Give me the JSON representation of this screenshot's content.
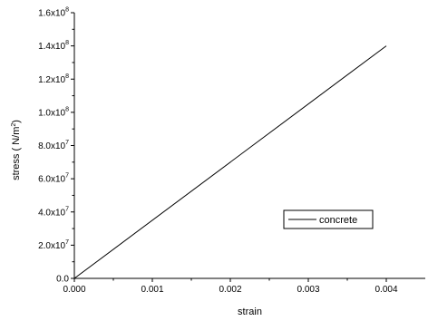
{
  "chart_data": {
    "type": "line",
    "title": "",
    "xlabel": "strain",
    "ylabel": "stress ( N/m",
    "ylabel_superscript": "2",
    "ylabel_suffix": ")",
    "xlim": [
      0,
      0.0045
    ],
    "ylim": [
      0,
      160000000
    ],
    "x_ticks": [
      {
        "value": 0.0,
        "label": "0.000"
      },
      {
        "value": 0.001,
        "label": "0.001"
      },
      {
        "value": 0.002,
        "label": "0.002"
      },
      {
        "value": 0.003,
        "label": "0.003"
      },
      {
        "value": 0.004,
        "label": "0.004"
      }
    ],
    "y_ticks": [
      {
        "value": 0,
        "mantissa": "0.0",
        "exp": ""
      },
      {
        "value": 20000000,
        "mantissa": "2.0x10",
        "exp": "7"
      },
      {
        "value": 40000000,
        "mantissa": "4.0x10",
        "exp": "7"
      },
      {
        "value": 60000000,
        "mantissa": "6.0x10",
        "exp": "7"
      },
      {
        "value": 80000000,
        "mantissa": "8.0x10",
        "exp": "7"
      },
      {
        "value": 100000000,
        "mantissa": "1.0x10",
        "exp": "8"
      },
      {
        "value": 120000000,
        "mantissa": "1.2x10",
        "exp": "8"
      },
      {
        "value": 140000000,
        "mantissa": "1.4x10",
        "exp": "8"
      },
      {
        "value": 160000000,
        "mantissa": "1.6x10",
        "exp": "8"
      }
    ],
    "series": [
      {
        "name": "concrete",
        "color": "#000000",
        "x": [
          0,
          0.004
        ],
        "y": [
          0,
          140000000
        ]
      }
    ],
    "legend": {
      "position": "lower-right",
      "entries": [
        "concrete"
      ]
    },
    "grid": false,
    "axes_box": "left-bottom-only"
  }
}
